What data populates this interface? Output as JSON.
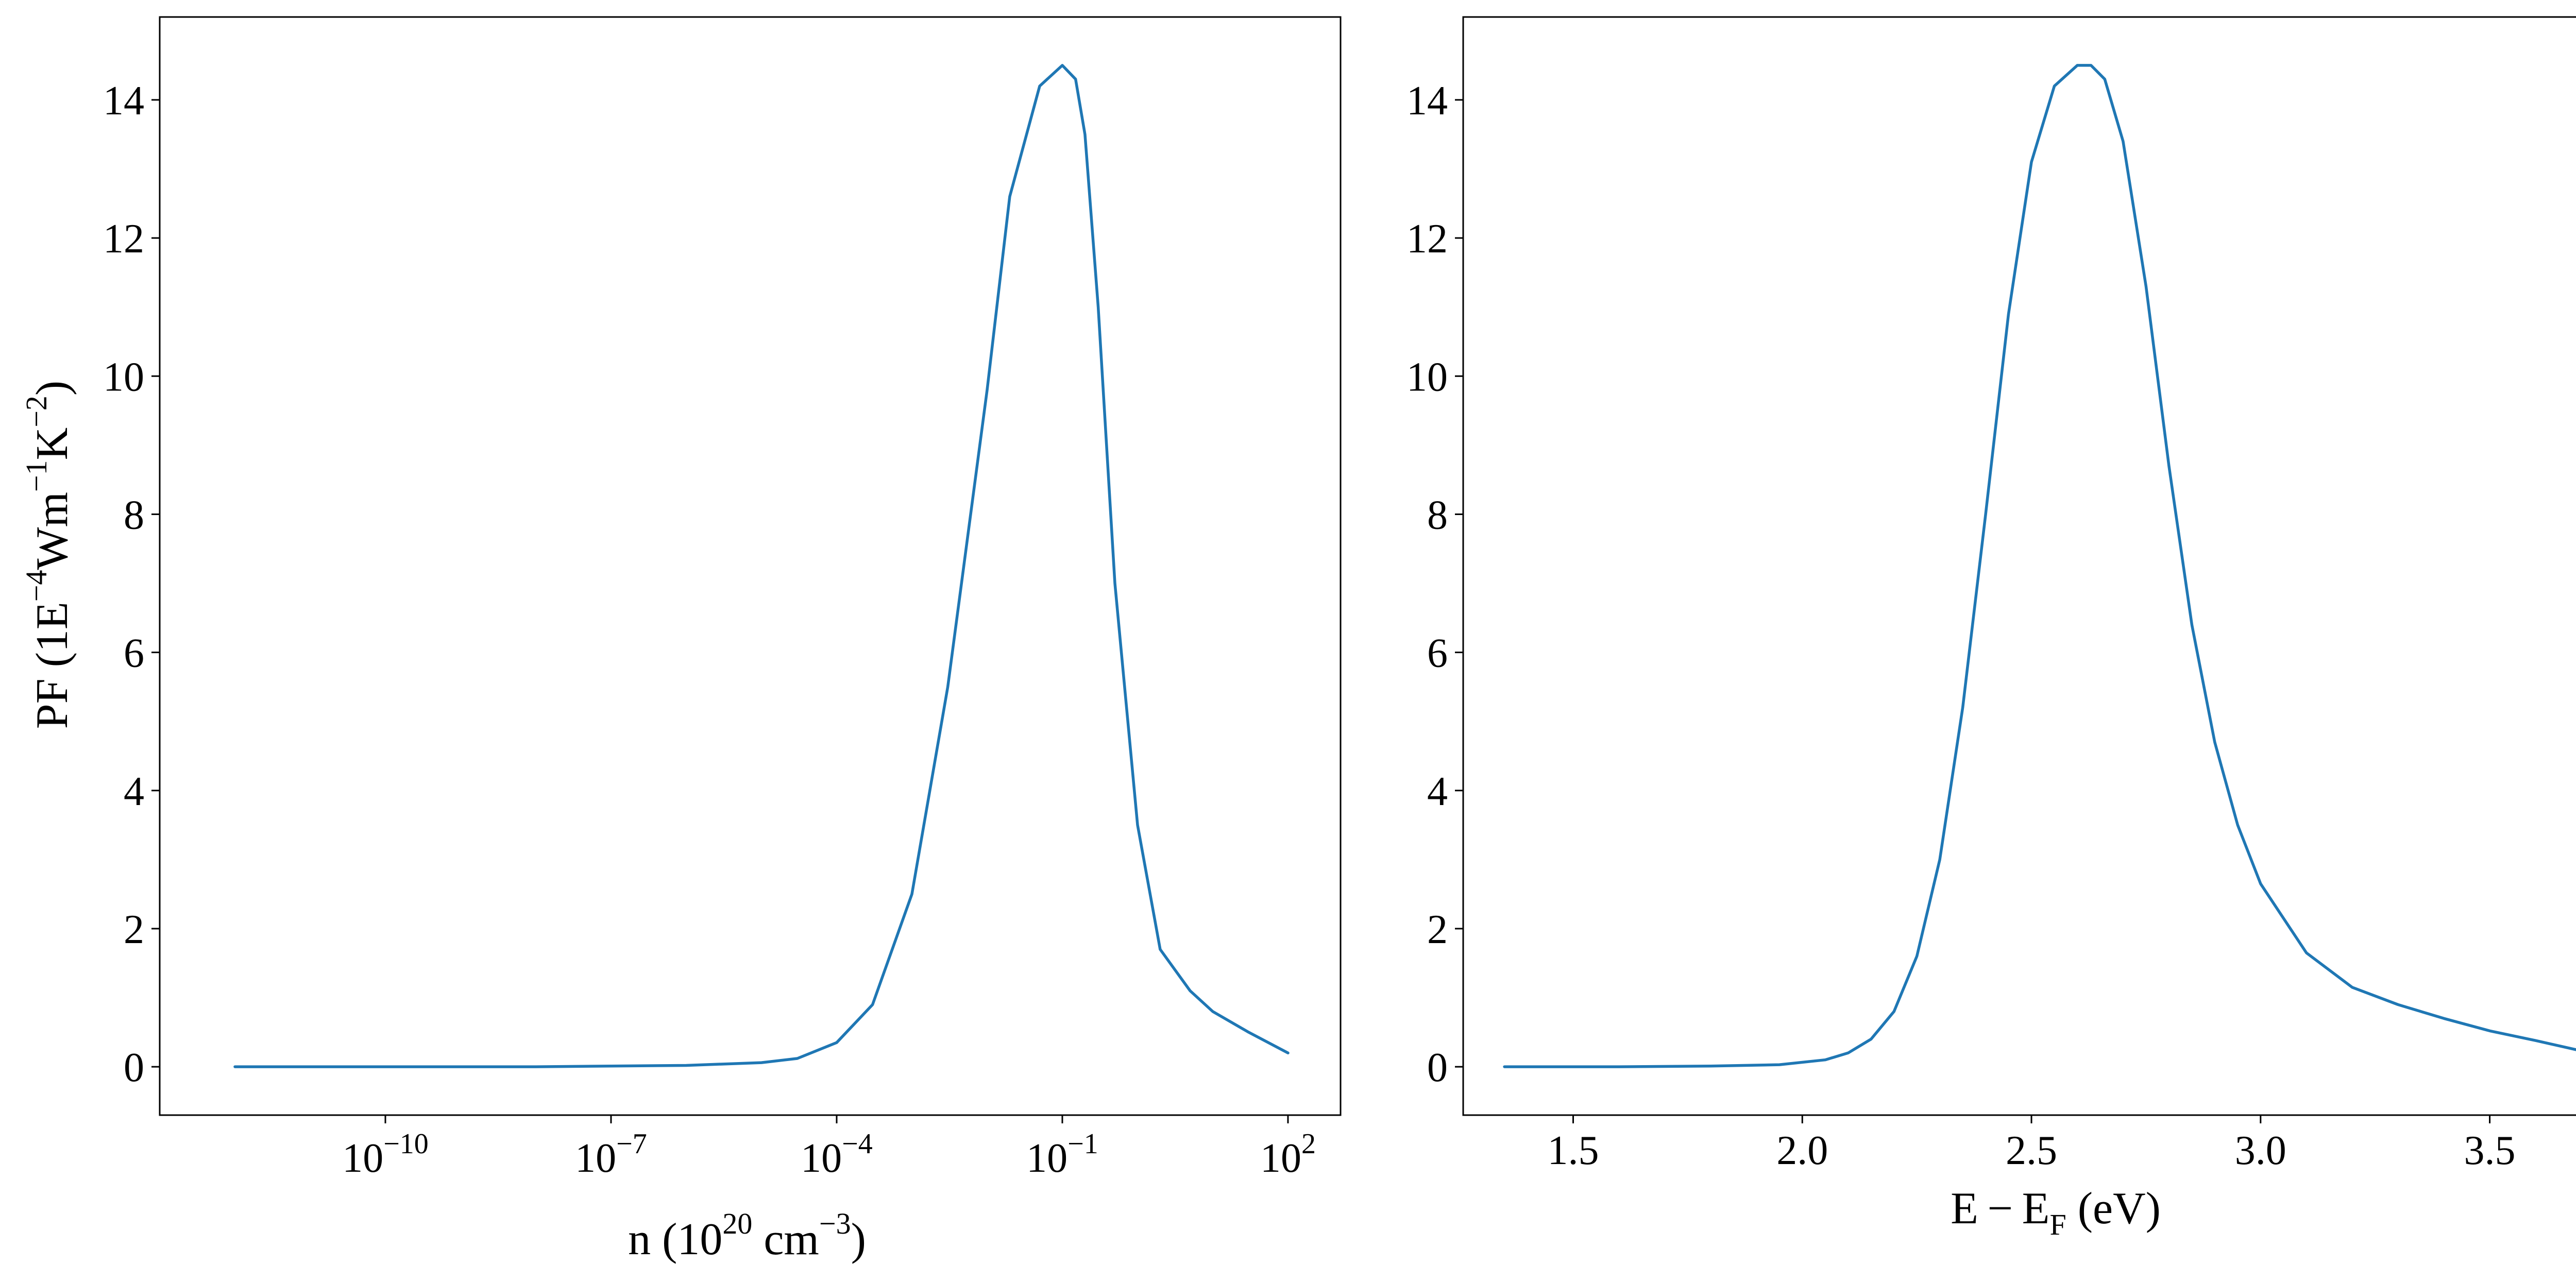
{
  "colors": {
    "line": "#1f77b4",
    "axes": "#000000",
    "background": "#ffffff"
  },
  "chart_data": [
    {
      "type": "line",
      "xscale": "log",
      "xlabel": {
        "base": "n (10",
        "exp1": "20",
        "mid": " cm",
        "exp2": "−3",
        "end": ")"
      },
      "ylabel": {
        "base": "PF (1E",
        "exp1": "−4",
        "mid1": "Wm",
        "exp2": "−1",
        "mid2": "K",
        "exp3": "−2",
        "end": ")"
      },
      "xticks": [
        {
          "value": 1e-10,
          "base": "10",
          "exp": "−10"
        },
        {
          "value": 1e-07,
          "base": "10",
          "exp": "−7"
        },
        {
          "value": 0.0001,
          "base": "10",
          "exp": "−4"
        },
        {
          "value": 0.1,
          "base": "10",
          "exp": "−1"
        },
        {
          "value": 100,
          "base": "10",
          "exp": "2"
        }
      ],
      "yticks": [
        "0",
        "2",
        "4",
        "6",
        "8",
        "10",
        "12",
        "14"
      ],
      "xlim": [
        1e-13,
        500
      ],
      "ylim": [
        -0.7,
        15.2
      ],
      "grid": false,
      "series": [
        {
          "x": [
            1e-12,
            1e-10,
            1e-08,
            1e-07,
            1e-06,
            1e-05,
            3e-05,
            0.0001,
            0.0003,
            0.001,
            0.003,
            0.01,
            0.02,
            0.05,
            0.1,
            0.15,
            0.2,
            0.3,
            0.5,
            1,
            2,
            5,
            10,
            30,
            100
          ],
          "y": [
            0.0,
            0.0,
            0.0,
            0.01,
            0.02,
            0.06,
            0.12,
            0.35,
            0.9,
            2.5,
            5.5,
            9.8,
            12.6,
            14.2,
            14.5,
            14.3,
            13.5,
            11.0,
            7.0,
            3.5,
            1.7,
            1.1,
            0.8,
            0.5,
            0.2
          ]
        }
      ]
    },
    {
      "type": "line",
      "xscale": "linear",
      "xlabel": {
        "base": "E − E",
        "sub": "F",
        "end": " (eV)"
      },
      "xticks": [
        "1.5",
        "2.0",
        "2.5",
        "3.0",
        "3.5"
      ],
      "yticks": [
        "0",
        "2",
        "4",
        "6",
        "8",
        "10",
        "12",
        "14"
      ],
      "xlim": [
        1.26,
        3.84
      ],
      "ylim": [
        -0.7,
        15.2
      ],
      "grid": false,
      "series": [
        {
          "x": [
            1.35,
            1.6,
            1.8,
            1.95,
            2.05,
            2.1,
            2.15,
            2.2,
            2.25,
            2.3,
            2.35,
            2.4,
            2.45,
            2.5,
            2.55,
            2.6,
            2.63,
            2.66,
            2.7,
            2.75,
            2.8,
            2.85,
            2.9,
            2.95,
            3.0,
            3.1,
            3.2,
            3.3,
            3.4,
            3.5,
            3.6,
            3.72
          ],
          "y": [
            0.0,
            0.0,
            0.01,
            0.03,
            0.1,
            0.2,
            0.4,
            0.8,
            1.6,
            3.0,
            5.2,
            8.0,
            10.9,
            13.1,
            14.2,
            14.5,
            14.5,
            14.3,
            13.4,
            11.3,
            8.7,
            6.4,
            4.7,
            3.5,
            2.65,
            1.65,
            1.15,
            0.9,
            0.7,
            0.52,
            0.38,
            0.2
          ]
        }
      ]
    }
  ]
}
